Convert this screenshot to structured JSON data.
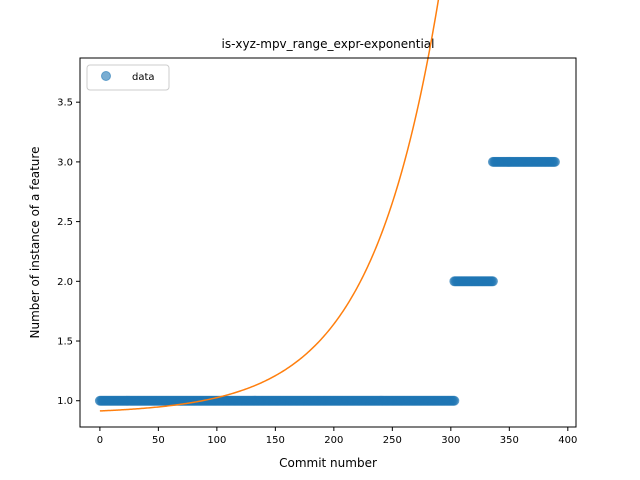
{
  "chart_data": {
    "type": "scatter",
    "title": "is-xyz-mpv_range_expr-exponential",
    "xlabel": "Commit number",
    "ylabel": "Number of instance of a feature",
    "xlim": [
      -17,
      407
    ],
    "ylim": [
      0.78,
      3.87
    ],
    "xticks": [
      0,
      50,
      100,
      150,
      200,
      250,
      300,
      350,
      400
    ],
    "yticks": [
      1.0,
      1.5,
      2.0,
      2.5,
      3.0,
      3.5
    ],
    "xtick_labels": [
      "0",
      "50",
      "100",
      "150",
      "200",
      "250",
      "300",
      "350",
      "400"
    ],
    "ytick_labels": [
      "1.0",
      "1.5",
      "2.0",
      "2.5",
      "3.0",
      "3.5"
    ],
    "grid": false,
    "legend": {
      "placement": "top-left",
      "entries": [
        {
          "label": "data",
          "marker": "circle"
        }
      ]
    },
    "series": [
      {
        "name": "data",
        "kind": "scatter",
        "color": "#1f77b4",
        "alpha": 0.6,
        "segments": [
          {
            "x_start": 0,
            "x_end": 303,
            "y": 1.0
          },
          {
            "x_start": 303,
            "x_end": 336,
            "y": 2.0
          },
          {
            "x_start": 336,
            "x_end": 389,
            "y": 3.0
          }
        ]
      },
      {
        "kind": "line",
        "color": "#ff7f0e",
        "fit": "exponential",
        "a": 0.0246,
        "b": 0.0171,
        "c": 0.89,
        "x_range": [
          0,
          389
        ]
      }
    ]
  }
}
